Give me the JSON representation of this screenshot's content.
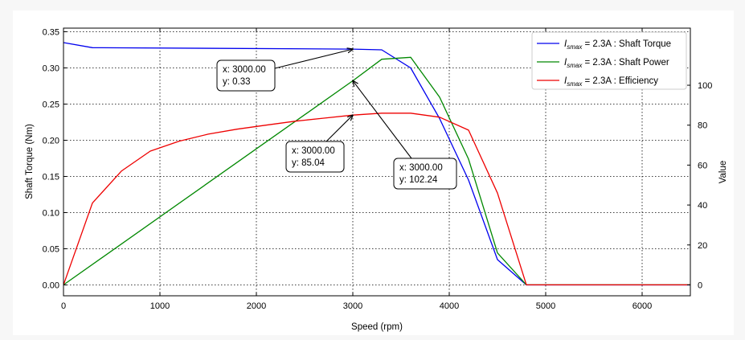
{
  "chart_data": {
    "type": "line",
    "xlabel": "Speed  (rpm)",
    "ylabel_left": "Shaft Torque  (Nm)",
    "ylabel_right": "Value",
    "xlim": [
      0,
      6500
    ],
    "ylim_left": [
      -0.015,
      0.355
    ],
    "ylim_right": [
      -5.46,
      128.6
    ],
    "x_ticks": [
      0,
      1000,
      2000,
      3000,
      4000,
      5000,
      6000
    ],
    "x_tick_labels": [
      "0",
      "1000",
      "2000",
      "3000",
      "4000",
      "5000",
      "6000"
    ],
    "y_left_ticks": [
      0.0,
      0.05,
      0.1,
      0.15,
      0.2,
      0.25,
      0.3,
      0.35
    ],
    "y_left_tick_labels": [
      "0.00",
      "0.05",
      "0.10",
      "0.15",
      "0.20",
      "0.25",
      "0.30",
      "0.35"
    ],
    "y_right_ticks": [
      0,
      20,
      40,
      60,
      80,
      100
    ],
    "y_right_tick_labels": [
      "0",
      "20",
      "40",
      "60",
      "80",
      "100"
    ],
    "grid": true,
    "legend_position": "top-right",
    "series": [
      {
        "name": "Shaft Torque",
        "legend_math": "I",
        "legend_sub": "smax",
        "legend_eq": " = 2.3A : Shaft Torque",
        "color": "#0000ee",
        "axis": "left",
        "x": [
          0,
          300,
          3000,
          3300,
          3600,
          3900,
          4200,
          4500,
          4800,
          6500
        ],
        "y": [
          0.335,
          0.328,
          0.326,
          0.325,
          0.3,
          0.23,
          0.145,
          0.035,
          0.0,
          0.0
        ]
      },
      {
        "name": "Shaft Power",
        "legend_math": "I",
        "legend_sub": "smax",
        "legend_eq": " = 2.3A : Shaft Power",
        "color": "#008800",
        "axis": "right",
        "x": [
          0,
          3000,
          3300,
          3600,
          3900,
          4200,
          4500,
          4800,
          6500
        ],
        "y": [
          0,
          102.24,
          113,
          114,
          94,
          63,
          16,
          0,
          0
        ]
      },
      {
        "name": "Efficiency",
        "legend_math": "I",
        "legend_sub": "smax",
        "legend_eq": " = 2.3A : Efficiency",
        "color": "#ee0000",
        "axis": "right",
        "x": [
          0,
          300,
          600,
          900,
          1200,
          1500,
          1800,
          2100,
          2400,
          2700,
          3000,
          3300,
          3600,
          3900,
          4200,
          4500,
          4800,
          6500
        ],
        "y": [
          0,
          41,
          57,
          67,
          72,
          75.5,
          78,
          80,
          82,
          83.5,
          85.04,
          86,
          86,
          84,
          77.5,
          46,
          0,
          0
        ]
      }
    ],
    "annotations": [
      {
        "axis": "left",
        "x": 3000,
        "y": 0.326,
        "label_x": "x: 3000.00",
        "label_y": "y: 0.33"
      },
      {
        "axis": "right",
        "x": 3000,
        "y": 85.04,
        "label_x": "x: 3000.00",
        "label_y": "y: 85.04"
      },
      {
        "axis": "right",
        "x": 3000,
        "y": 102.24,
        "label_x": "x: 3000.00",
        "label_y": "y: 102.24"
      }
    ]
  }
}
